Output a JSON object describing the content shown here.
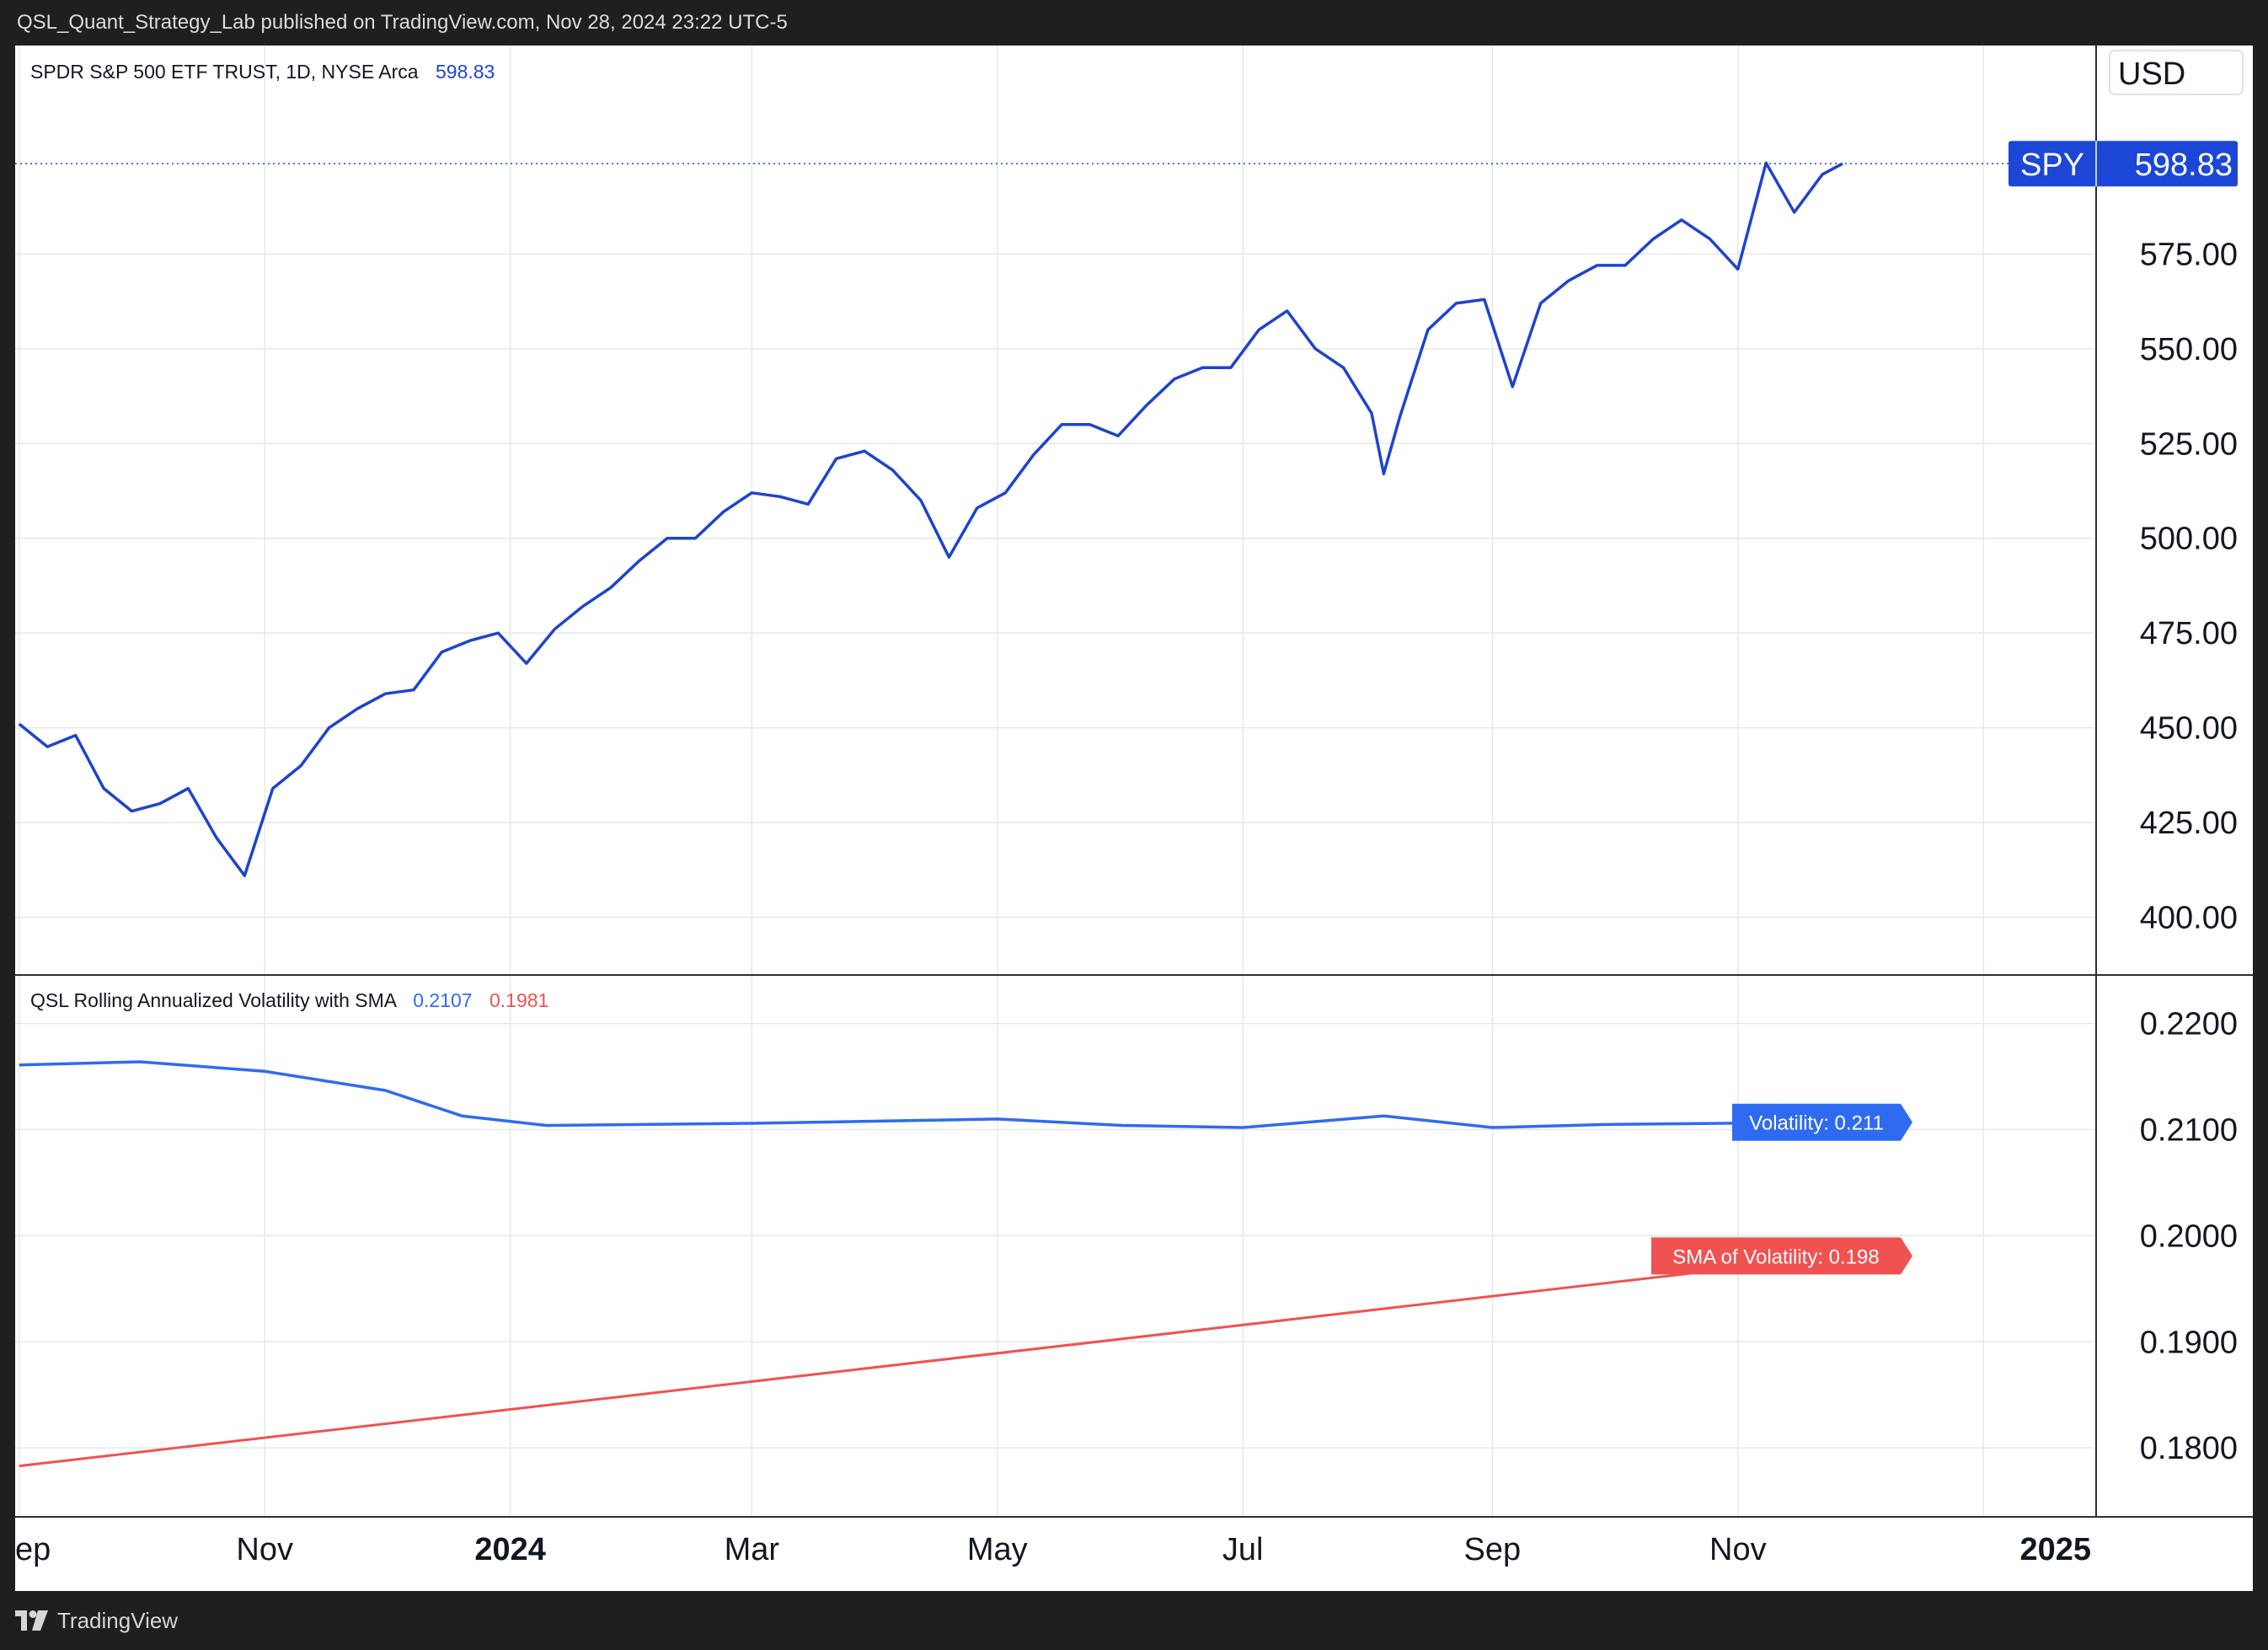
{
  "header": {
    "published_text": "QSL_Quant_Strategy_Lab published on TradingView.com, Nov 28, 2024 23:22 UTC-5"
  },
  "footer": {
    "brand": "TradingView",
    "logo_icon": "tradingview-logo-icon"
  },
  "colors": {
    "price_line": "#1e44cc",
    "price_label_bg": "#1c46d6",
    "volatility_line": "#2f6bf0",
    "sma_line": "#f05252",
    "grid": "#e7e8ec",
    "text": "#131722"
  },
  "main_pane": {
    "legend_title": "SPDR S&P 500 ETF TRUST, 1D, NYSE Arca",
    "legend_value": "598.83",
    "currency": "USD",
    "symbol": "SPY",
    "last_price": "598.83"
  },
  "volatility_pane": {
    "legend_title": "QSL Rolling Annualized Volatility with SMA",
    "legend_vol_value": "0.2107",
    "legend_sma_value": "0.1981",
    "vol_tag": "Volatility: 0.211",
    "sma_tag": "SMA of Volatility: 0.198"
  },
  "chart_data": [
    {
      "type": "line",
      "title": "SPDR S&P 500 ETF TRUST, 1D, NYSE Arca",
      "ylabel": "USD",
      "ylim": [
        385,
        630
      ],
      "y_ticks": [
        "400.00",
        "425.00",
        "450.00",
        "475.00",
        "500.00",
        "525.00",
        "550.00",
        "575.00"
      ],
      "x_ticks": [
        "ep",
        "Nov",
        "2024",
        "Mar",
        "May",
        "Jul",
        "Sep",
        "Nov",
        "2025"
      ],
      "series": [
        {
          "name": "SPY",
          "points": [
            [
              "2023-09-01",
              451
            ],
            [
              "2023-09-08",
              445
            ],
            [
              "2023-09-15",
              448
            ],
            [
              "2023-09-22",
              434
            ],
            [
              "2023-09-29",
              428
            ],
            [
              "2023-10-06",
              430
            ],
            [
              "2023-10-13",
              434
            ],
            [
              "2023-10-20",
              421
            ],
            [
              "2023-10-27",
              411
            ],
            [
              "2023-11-03",
              434
            ],
            [
              "2023-11-10",
              440
            ],
            [
              "2023-11-17",
              450
            ],
            [
              "2023-11-24",
              455
            ],
            [
              "2023-12-01",
              459
            ],
            [
              "2023-12-08",
              460
            ],
            [
              "2023-12-15",
              470
            ],
            [
              "2023-12-22",
              473
            ],
            [
              "2023-12-29",
              475
            ],
            [
              "2024-01-05",
              467
            ],
            [
              "2024-01-12",
              476
            ],
            [
              "2024-01-19",
              482
            ],
            [
              "2024-01-26",
              487
            ],
            [
              "2024-02-02",
              494
            ],
            [
              "2024-02-09",
              500
            ],
            [
              "2024-02-16",
              500
            ],
            [
              "2024-02-23",
              507
            ],
            [
              "2024-03-01",
              512
            ],
            [
              "2024-03-08",
              511
            ],
            [
              "2024-03-15",
              509
            ],
            [
              "2024-03-22",
              521
            ],
            [
              "2024-03-29",
              523
            ],
            [
              "2024-04-05",
              518
            ],
            [
              "2024-04-12",
              510
            ],
            [
              "2024-04-19",
              495
            ],
            [
              "2024-04-26",
              508
            ],
            [
              "2024-05-03",
              512
            ],
            [
              "2024-05-10",
              522
            ],
            [
              "2024-05-17",
              530
            ],
            [
              "2024-05-24",
              530
            ],
            [
              "2024-05-31",
              527
            ],
            [
              "2024-06-07",
              535
            ],
            [
              "2024-06-14",
              542
            ],
            [
              "2024-06-21",
              545
            ],
            [
              "2024-06-28",
              545
            ],
            [
              "2024-07-05",
              555
            ],
            [
              "2024-07-12",
              560
            ],
            [
              "2024-07-19",
              550
            ],
            [
              "2024-07-26",
              545
            ],
            [
              "2024-08-02",
              533
            ],
            [
              "2024-08-05",
              517
            ],
            [
              "2024-08-09",
              532
            ],
            [
              "2024-08-16",
              555
            ],
            [
              "2024-08-23",
              562
            ],
            [
              "2024-08-30",
              563
            ],
            [
              "2024-09-06",
              540
            ],
            [
              "2024-09-13",
              562
            ],
            [
              "2024-09-20",
              568
            ],
            [
              "2024-09-27",
              572
            ],
            [
              "2024-10-04",
              572
            ],
            [
              "2024-10-11",
              579
            ],
            [
              "2024-10-18",
              584
            ],
            [
              "2024-10-25",
              579
            ],
            [
              "2024-11-01",
              571
            ],
            [
              "2024-11-08",
              599
            ],
            [
              "2024-11-15",
              586
            ],
            [
              "2024-11-22",
              596
            ],
            [
              "2024-11-27",
              598.83
            ]
          ]
        }
      ]
    },
    {
      "type": "line",
      "title": "QSL Rolling Annualized Volatility with SMA",
      "ylim": [
        0.1735,
        0.2245
      ],
      "y_ticks": [
        "0.1800",
        "0.1900",
        "0.2000",
        "0.2100",
        "0.2200"
      ],
      "series": [
        {
          "name": "Volatility",
          "points": [
            [
              "2023-09-01",
              0.2161
            ],
            [
              "2023-10-01",
              0.2164
            ],
            [
              "2023-11-01",
              0.2155
            ],
            [
              "2023-12-01",
              0.2137
            ],
            [
              "2023-12-20",
              0.2113
            ],
            [
              "2024-01-10",
              0.2104
            ],
            [
              "2024-03-01",
              0.2106
            ],
            [
              "2024-05-01",
              0.211
            ],
            [
              "2024-06-01",
              0.2104
            ],
            [
              "2024-07-01",
              0.2102
            ],
            [
              "2024-08-05",
              0.2113
            ],
            [
              "2024-09-01",
              0.2102
            ],
            [
              "2024-10-01",
              0.2105
            ],
            [
              "2024-11-27",
              0.2107
            ]
          ]
        },
        {
          "name": "SMA of Volatility",
          "points": [
            [
              "2023-09-01",
              0.1783
            ],
            [
              "2024-11-27",
              0.1981
            ]
          ]
        }
      ]
    }
  ]
}
